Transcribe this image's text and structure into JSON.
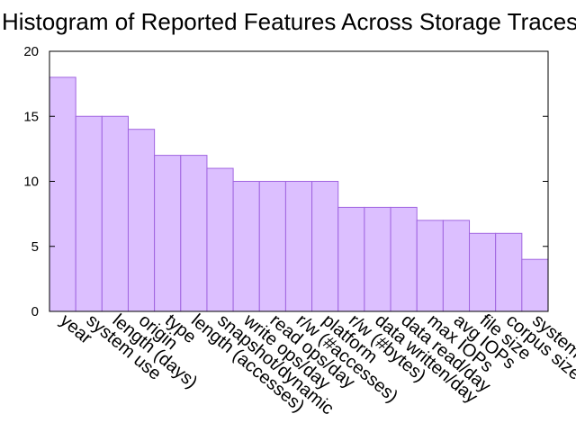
{
  "chart_data": {
    "type": "bar",
    "title": "Histogram of Reported Features Across Storage Traces",
    "xlabel": "",
    "ylabel": "",
    "ylim": [
      0,
      20
    ],
    "yticks": [
      0,
      5,
      10,
      15,
      20
    ],
    "grid": false,
    "categories": [
      "year",
      "system use",
      "length (days)",
      "origin",
      "type",
      "length (accesses)",
      "snapshot/dynamic",
      "write ops/day",
      "read ops/day",
      "r/w (#accesses)",
      "platform",
      "r/w (#bytes)",
      "data written/day",
      "data read/day",
      "max IOPs",
      "avg IOPs",
      "file size",
      "corpus size",
      "system"
    ],
    "values": [
      18,
      15,
      15,
      14,
      12,
      12,
      11,
      10,
      10,
      10,
      10,
      8,
      8,
      8,
      7,
      7,
      6,
      6,
      4
    ],
    "colors": {
      "bar_fill": "#dcbfff",
      "bar_stroke": "#a064e0"
    }
  }
}
